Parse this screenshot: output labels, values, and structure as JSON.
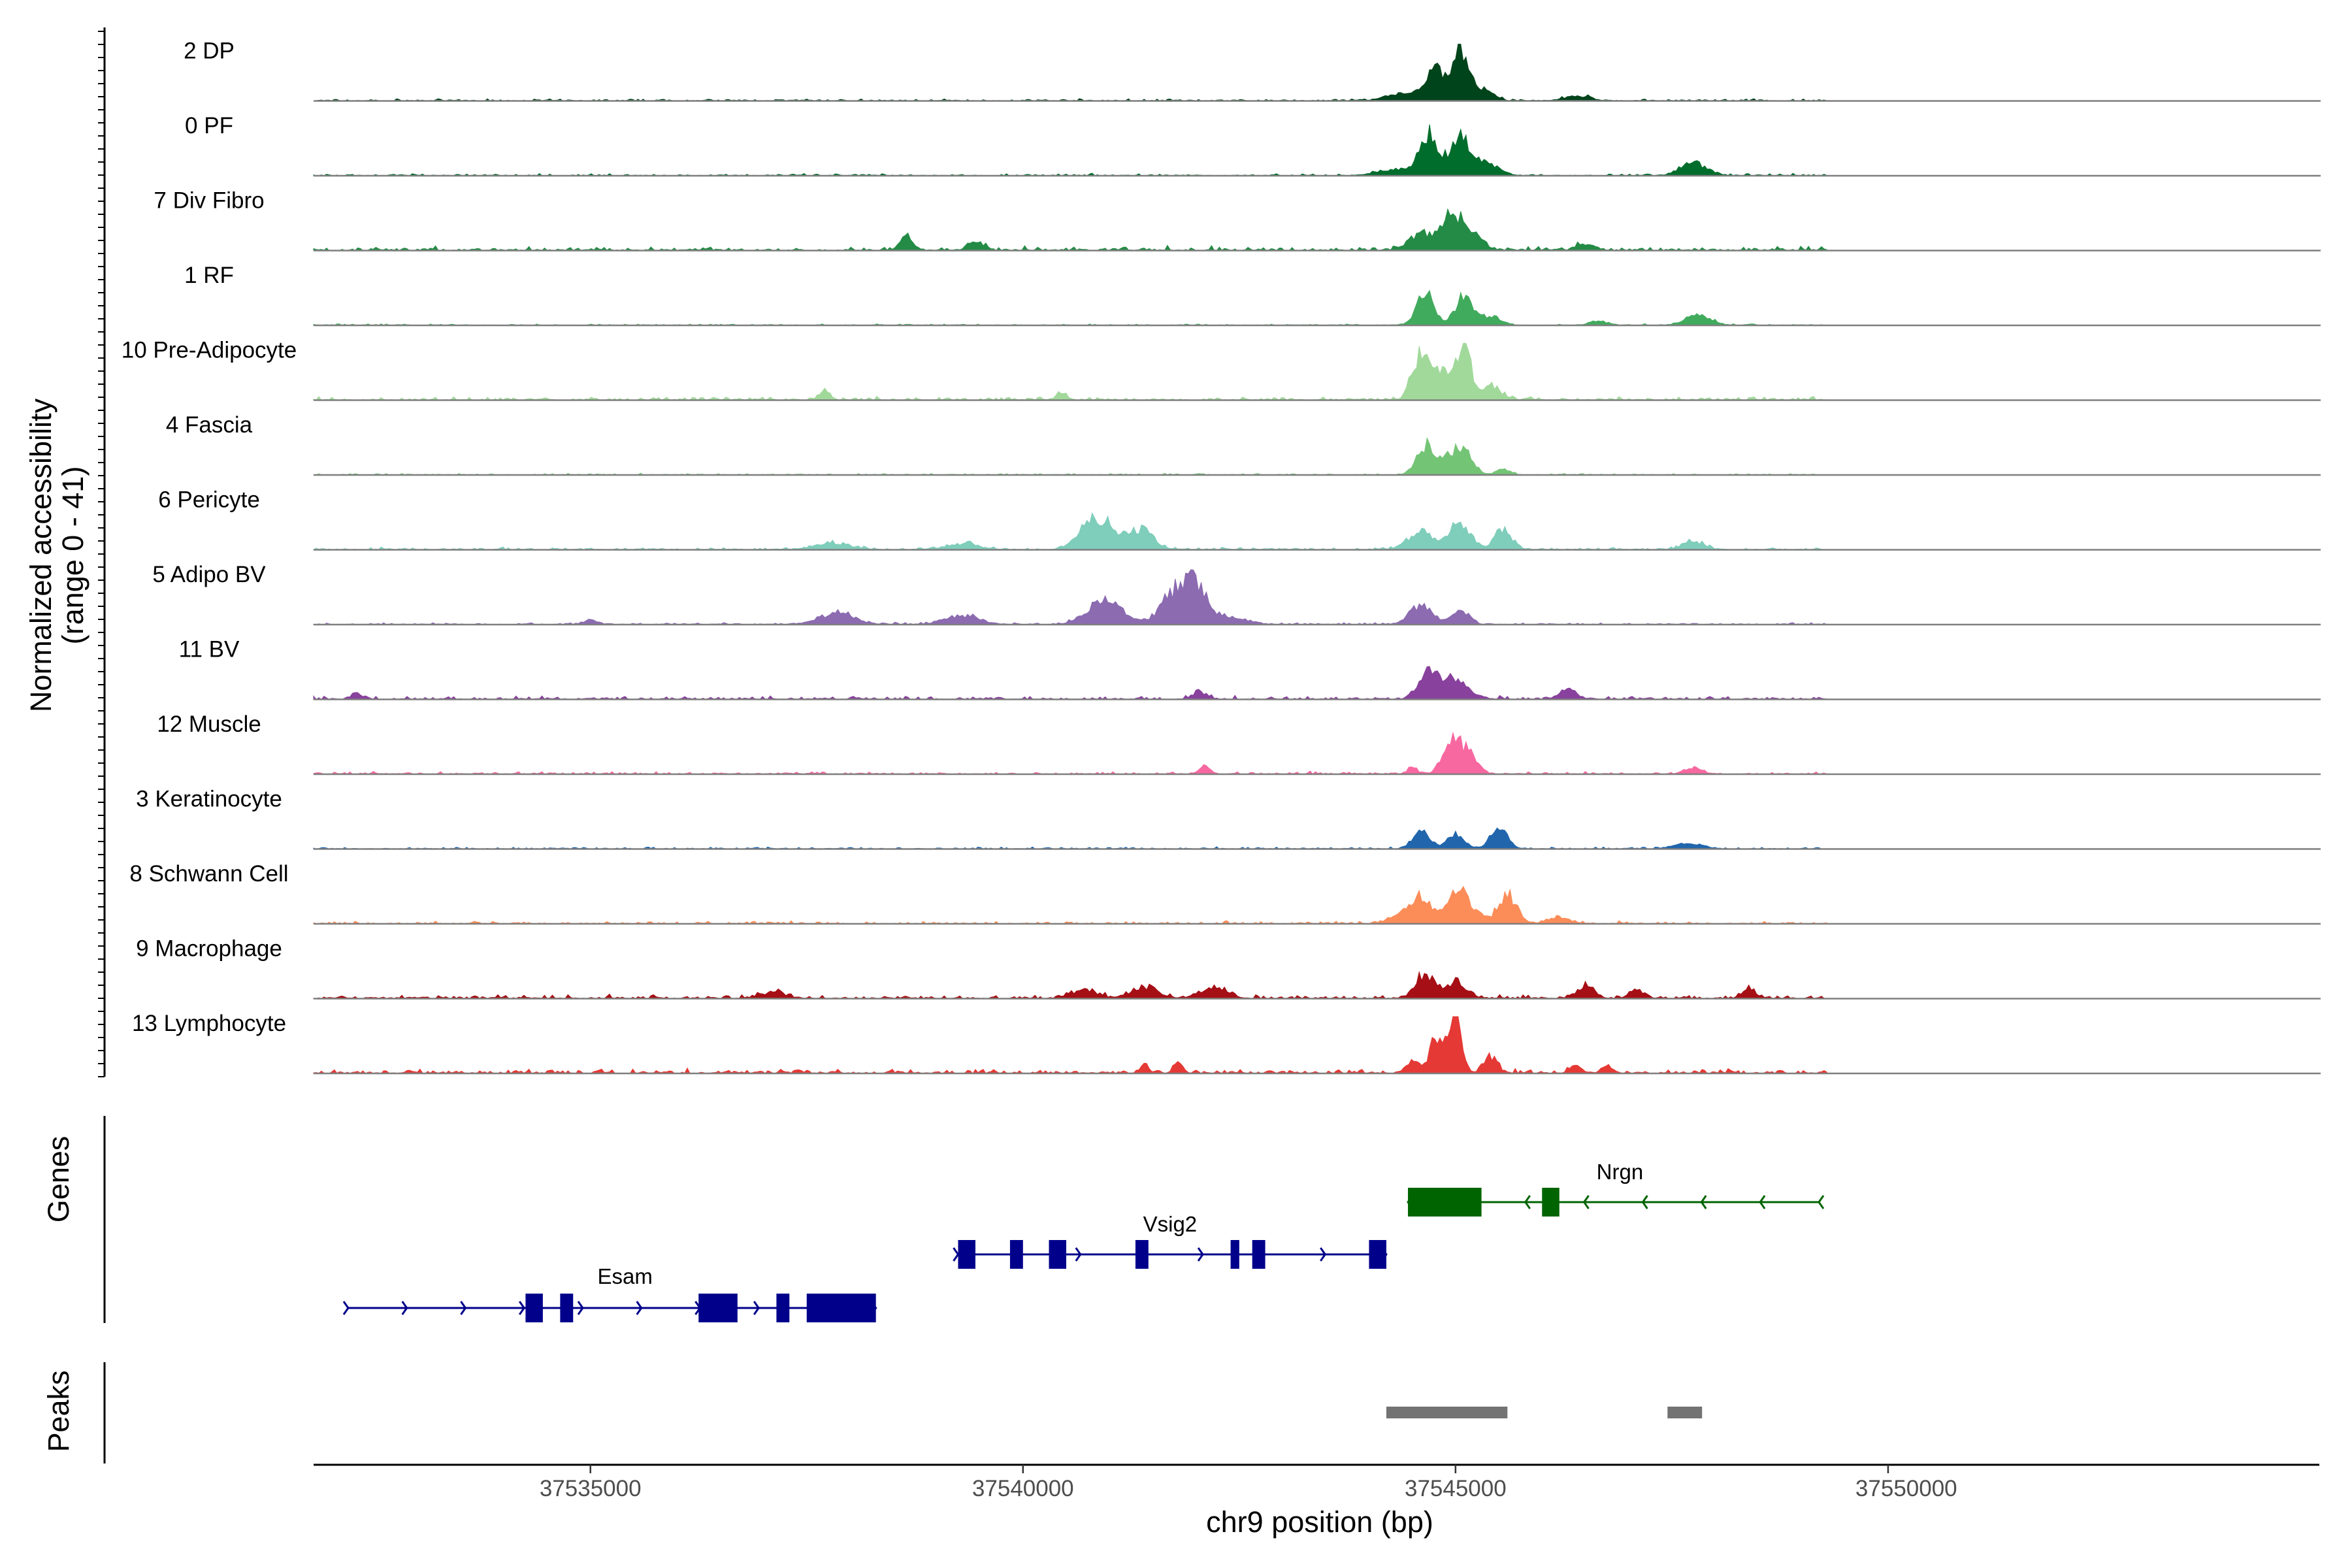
{
  "chart_data": {
    "type": "area",
    "chromosome": "chr9",
    "xlabel": "chr9 position (bp)",
    "ylabel": "Normalized accessibility",
    "ylabel_range": "(range 0 - 41)",
    "xlim": [
      37531800,
      37555000
    ],
    "x_ticks": [
      37535000,
      37540000,
      37545000,
      37550000
    ],
    "x_tick_labels": [
      "37535000",
      "37540000",
      "37545000",
      "37550000"
    ],
    "grid": false,
    "tracks": [
      {
        "name": "2 DP",
        "color": "#00441b",
        "peaks": [
          [
            37544750,
            0.55,
            100
          ],
          [
            37545050,
            0.95,
            90
          ],
          [
            37545300,
            0.2,
            120
          ],
          [
            37544400,
            0.12,
            200
          ],
          [
            37546400,
            0.08,
            150
          ]
        ],
        "noise": 0.04
      },
      {
        "name": "0 PF",
        "color": "#006d2c",
        "peaks": [
          [
            37544700,
            0.7,
            110
          ],
          [
            37545050,
            0.65,
            110
          ],
          [
            37545350,
            0.2,
            150
          ],
          [
            37547750,
            0.22,
            150
          ],
          [
            37544300,
            0.1,
            200
          ]
        ],
        "noise": 0.04
      },
      {
        "name": "7 Div Fibro",
        "color": "#238b45",
        "peaks": [
          [
            37544600,
            0.3,
            130
          ],
          [
            37544950,
            0.6,
            120
          ],
          [
            37545200,
            0.3,
            110
          ],
          [
            37538650,
            0.25,
            60
          ],
          [
            37539450,
            0.15,
            80
          ],
          [
            37546500,
            0.12,
            100
          ]
        ],
        "noise": 0.08
      },
      {
        "name": "1 RF",
        "color": "#41ab5d",
        "peaks": [
          [
            37544650,
            0.55,
            100
          ],
          [
            37545100,
            0.5,
            100
          ],
          [
            37545400,
            0.15,
            120
          ],
          [
            37547800,
            0.2,
            140
          ],
          [
            37546650,
            0.08,
            100
          ]
        ],
        "noise": 0.03
      },
      {
        "name": "10 Pre-Adipocyte",
        "color": "#a1d99b",
        "peaks": [
          [
            37544600,
            0.7,
            100
          ],
          [
            37545100,
            1.0,
            70
          ],
          [
            37544850,
            0.45,
            150
          ],
          [
            37545400,
            0.25,
            120
          ],
          [
            37537700,
            0.15,
            60
          ],
          [
            37540450,
            0.12,
            60
          ]
        ],
        "noise": 0.07
      },
      {
        "name": "4 Fascia",
        "color": "#74c476",
        "peaks": [
          [
            37544650,
            0.45,
            100
          ],
          [
            37545100,
            0.4,
            100
          ],
          [
            37545550,
            0.1,
            80
          ],
          [
            37544900,
            0.25,
            150
          ]
        ],
        "noise": 0.03
      },
      {
        "name": "6 Pericyte",
        "color": "#7fcdbb",
        "peaks": [
          [
            37540850,
            0.55,
            180
          ],
          [
            37541350,
            0.35,
            150
          ],
          [
            37544600,
            0.3,
            150
          ],
          [
            37545050,
            0.45,
            120
          ],
          [
            37545550,
            0.35,
            100
          ],
          [
            37547750,
            0.15,
            120
          ],
          [
            37537800,
            0.12,
            200
          ],
          [
            37539300,
            0.1,
            200
          ]
        ],
        "noise": 0.05
      },
      {
        "name": "5 Adipo BV",
        "color": "#8c6bb1",
        "peaks": [
          [
            37541950,
            0.75,
            150
          ],
          [
            37541700,
            0.35,
            150
          ],
          [
            37540950,
            0.4,
            200
          ],
          [
            37537850,
            0.2,
            200
          ],
          [
            37539300,
            0.15,
            200
          ],
          [
            37544600,
            0.35,
            120
          ],
          [
            37545050,
            0.25,
            100
          ],
          [
            37535000,
            0.08,
            80
          ],
          [
            37542400,
            0.12,
            200
          ]
        ],
        "noise": 0.04
      },
      {
        "name": "11 BV",
        "color": "#88419d",
        "peaks": [
          [
            37544700,
            0.45,
            120
          ],
          [
            37545000,
            0.3,
            150
          ],
          [
            37546300,
            0.15,
            100
          ],
          [
            37542050,
            0.12,
            80
          ],
          [
            37532300,
            0.1,
            60
          ]
        ],
        "noise": 0.06
      },
      {
        "name": "12 Muscle",
        "color": "#f768a1",
        "peaks": [
          [
            37544950,
            0.55,
            100
          ],
          [
            37545150,
            0.35,
            100
          ],
          [
            37544500,
            0.12,
            50
          ],
          [
            37542100,
            0.15,
            60
          ],
          [
            37547750,
            0.1,
            100
          ]
        ],
        "noise": 0.05
      },
      {
        "name": "3 Keratinocyte",
        "color": "#2166ac",
        "peaks": [
          [
            37544600,
            0.3,
            100
          ],
          [
            37545000,
            0.25,
            100
          ],
          [
            37545500,
            0.35,
            100
          ],
          [
            37547700,
            0.1,
            150
          ]
        ],
        "noise": 0.04
      },
      {
        "name": "8 Schwann Cell",
        "color": "#fc8d59",
        "peaks": [
          [
            37544600,
            0.45,
            120
          ],
          [
            37545050,
            0.55,
            150
          ],
          [
            37545600,
            0.5,
            110
          ],
          [
            37544350,
            0.12,
            150
          ],
          [
            37546200,
            0.1,
            120
          ]
        ],
        "noise": 0.05
      },
      {
        "name": "9 Macrophage",
        "color": "#a50f15",
        "peaks": [
          [
            37544650,
            0.45,
            100
          ],
          [
            37545000,
            0.3,
            120
          ],
          [
            37546500,
            0.2,
            100
          ],
          [
            37541400,
            0.2,
            150
          ],
          [
            37542200,
            0.2,
            150
          ],
          [
            37540700,
            0.15,
            150
          ],
          [
            37547100,
            0.15,
            80
          ],
          [
            37548400,
            0.15,
            80
          ],
          [
            37537100,
            0.1,
            150
          ]
        ],
        "noise": 0.07
      },
      {
        "name": "13 Lymphocyte",
        "color": "#e53935",
        "peaks": [
          [
            37545000,
            0.95,
            70
          ],
          [
            37544800,
            0.55,
            100
          ],
          [
            37545400,
            0.3,
            80
          ],
          [
            37544500,
            0.2,
            80
          ],
          [
            37541800,
            0.25,
            50
          ],
          [
            37541400,
            0.15,
            50
          ],
          [
            37546400,
            0.15,
            60
          ],
          [
            37546750,
            0.12,
            60
          ]
        ],
        "noise": 0.09
      }
    ],
    "genes": [
      {
        "name": "Esam",
        "strand": "+",
        "color": "#00008b",
        "start": 37532200,
        "end": 37538300,
        "row": 2,
        "exons": [
          [
            37534250,
            37534450
          ],
          [
            37534650,
            37534800
          ],
          [
            37536250,
            37536700
          ],
          [
            37537150,
            37537300
          ],
          [
            37537500,
            37538300
          ]
        ]
      },
      {
        "name": "Vsig2",
        "strand": "+",
        "color": "#00008b",
        "start": 37539250,
        "end": 37544200,
        "row": 1,
        "exons": [
          [
            37539250,
            37539450
          ],
          [
            37539850,
            37540000
          ],
          [
            37540300,
            37540500
          ],
          [
            37541300,
            37541450
          ],
          [
            37542400,
            37542500
          ],
          [
            37542650,
            37542800
          ],
          [
            37544000,
            37544200
          ]
        ]
      },
      {
        "name": "Nrgn",
        "strand": "-",
        "color": "#006400",
        "start": 37544450,
        "end": 37549200,
        "row": 0,
        "exons": [
          [
            37544450,
            37545300
          ],
          [
            37546000,
            37546200
          ]
        ]
      }
    ],
    "peak_regions": [
      [
        37544200,
        37545600
      ],
      [
        37547450,
        37547850
      ]
    ],
    "panel_labels": {
      "genes": "Genes",
      "peaks": "Peaks"
    }
  }
}
